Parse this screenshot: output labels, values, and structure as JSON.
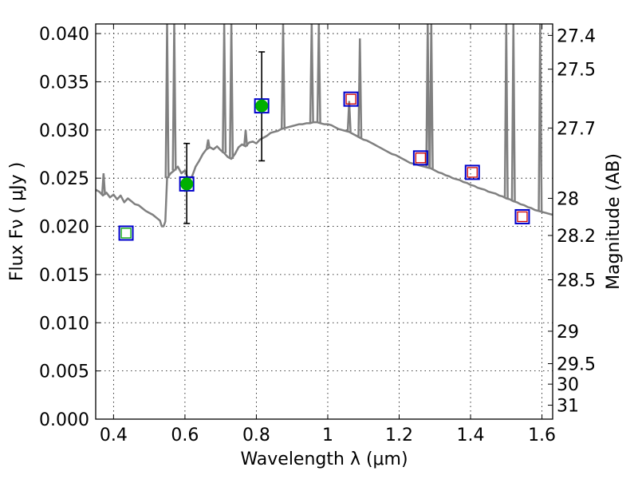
{
  "chart_data": {
    "type": "scatter",
    "title": "",
    "xlabel": "Wavelength  λ (μm)",
    "ylabel": "Flux  Fν  ( μJy )",
    "y2label": "Magnitude (AB)",
    "xlim": [
      0.35,
      1.63
    ],
    "ylim": [
      0.0,
      0.041
    ],
    "grid": true,
    "legend": "none",
    "xticks": [
      {
        "v": 0.4,
        "label": "0.4"
      },
      {
        "v": 0.6,
        "label": "0.6"
      },
      {
        "v": 0.8,
        "label": "0.8"
      },
      {
        "v": 1.0,
        "label": "1"
      },
      {
        "v": 1.2,
        "label": "1.2"
      },
      {
        "v": 1.4,
        "label": "1.4"
      },
      {
        "v": 1.6,
        "label": "1.6"
      }
    ],
    "yticks": [
      {
        "v": 0.0,
        "label": "0.000"
      },
      {
        "v": 0.005,
        "label": "0.005"
      },
      {
        "v": 0.01,
        "label": "0.010"
      },
      {
        "v": 0.015,
        "label": "0.015"
      },
      {
        "v": 0.02,
        "label": "0.020"
      },
      {
        "v": 0.025,
        "label": "0.025"
      },
      {
        "v": 0.03,
        "label": "0.030"
      },
      {
        "v": 0.035,
        "label": "0.035"
      },
      {
        "v": 0.04,
        "label": "0.040"
      }
    ],
    "magticks": [
      {
        "mag": 27.4,
        "label": "27.4"
      },
      {
        "mag": 27.5,
        "label": "27.5"
      },
      {
        "mag": 27.7,
        "label": "27.7"
      },
      {
        "mag": 28.0,
        "label": "28"
      },
      {
        "mag": 28.2,
        "label": "28.2"
      },
      {
        "mag": 28.5,
        "label": "28.5"
      },
      {
        "mag": 29.0,
        "label": "29"
      },
      {
        "mag": 29.5,
        "label": "29.5"
      },
      {
        "mag": 30.0,
        "label": "30"
      },
      {
        "mag": 31.0,
        "label": "31"
      }
    ],
    "series": [
      {
        "name": "model SED",
        "kind": "line",
        "color": "#808080",
        "points": [
          [
            0.35,
            0.0238
          ],
          [
            0.36,
            0.0236
          ],
          [
            0.37,
            0.0232
          ],
          [
            0.38,
            0.0235
          ],
          [
            0.39,
            0.023
          ],
          [
            0.4,
            0.0233
          ],
          [
            0.41,
            0.0228
          ],
          [
            0.42,
            0.0232
          ],
          [
            0.43,
            0.0225
          ],
          [
            0.44,
            0.0229
          ],
          [
            0.45,
            0.0226
          ],
          [
            0.46,
            0.0223
          ],
          [
            0.47,
            0.0222
          ],
          [
            0.48,
            0.0219
          ],
          [
            0.49,
            0.0216
          ],
          [
            0.5,
            0.0214
          ],
          [
            0.51,
            0.0212
          ],
          [
            0.52,
            0.0209
          ],
          [
            0.53,
            0.0206
          ],
          [
            0.535,
            0.02
          ],
          [
            0.54,
            0.02
          ],
          [
            0.545,
            0.0205
          ],
          [
            0.55,
            0.025
          ],
          [
            0.56,
            0.0255
          ],
          [
            0.57,
            0.0258
          ],
          [
            0.58,
            0.0262
          ],
          [
            0.59,
            0.0255
          ],
          [
            0.6,
            0.0258
          ],
          [
            0.61,
            0.0248
          ],
          [
            0.62,
            0.0252
          ],
          [
            0.63,
            0.0262
          ],
          [
            0.64,
            0.0268
          ],
          [
            0.65,
            0.0275
          ],
          [
            0.66,
            0.028
          ],
          [
            0.67,
            0.0282
          ],
          [
            0.68,
            0.028
          ],
          [
            0.69,
            0.0283
          ],
          [
            0.7,
            0.0279
          ],
          [
            0.71,
            0.0276
          ],
          [
            0.72,
            0.0272
          ],
          [
            0.73,
            0.027
          ],
          [
            0.74,
            0.0275
          ],
          [
            0.75,
            0.0282
          ],
          [
            0.76,
            0.0285
          ],
          [
            0.77,
            0.0283
          ],
          [
            0.78,
            0.0287
          ],
          [
            0.79,
            0.0288
          ],
          [
            0.8,
            0.0286
          ],
          [
            0.81,
            0.029
          ],
          [
            0.82,
            0.0292
          ],
          [
            0.83,
            0.0294
          ],
          [
            0.84,
            0.0297
          ],
          [
            0.85,
            0.0298
          ],
          [
            0.86,
            0.0299
          ],
          [
            0.87,
            0.0301
          ],
          [
            0.88,
            0.0302
          ],
          [
            0.89,
            0.0303
          ],
          [
            0.9,
            0.0304
          ],
          [
            0.91,
            0.0305
          ],
          [
            0.92,
            0.0306
          ],
          [
            0.93,
            0.0306
          ],
          [
            0.94,
            0.0307
          ],
          [
            0.95,
            0.0307
          ],
          [
            0.96,
            0.0308
          ],
          [
            0.97,
            0.0308
          ],
          [
            0.98,
            0.0307
          ],
          [
            0.99,
            0.0306
          ],
          [
            1.0,
            0.0306
          ],
          [
            1.01,
            0.0305
          ],
          [
            1.02,
            0.0303
          ],
          [
            1.03,
            0.0301
          ],
          [
            1.04,
            0.03
          ],
          [
            1.05,
            0.0299
          ],
          [
            1.06,
            0.0298
          ],
          [
            1.07,
            0.0296
          ],
          [
            1.08,
            0.0294
          ],
          [
            1.09,
            0.0292
          ],
          [
            1.1,
            0.029
          ],
          [
            1.11,
            0.0289
          ],
          [
            1.12,
            0.0287
          ],
          [
            1.13,
            0.0285
          ],
          [
            1.14,
            0.0283
          ],
          [
            1.15,
            0.0281
          ],
          [
            1.16,
            0.0279
          ],
          [
            1.17,
            0.0277
          ],
          [
            1.18,
            0.0275
          ],
          [
            1.19,
            0.0274
          ],
          [
            1.2,
            0.0272
          ],
          [
            1.21,
            0.027
          ],
          [
            1.22,
            0.0268
          ],
          [
            1.23,
            0.0266
          ],
          [
            1.24,
            0.0265
          ],
          [
            1.25,
            0.0264
          ],
          [
            1.26,
            0.0263
          ],
          [
            1.27,
            0.0262
          ],
          [
            1.28,
            0.0261
          ],
          [
            1.29,
            0.026
          ],
          [
            1.3,
            0.0258
          ],
          [
            1.31,
            0.0256
          ],
          [
            1.32,
            0.0255
          ],
          [
            1.33,
            0.0253
          ],
          [
            1.34,
            0.0252
          ],
          [
            1.35,
            0.025
          ],
          [
            1.36,
            0.0249
          ],
          [
            1.37,
            0.0248
          ],
          [
            1.38,
            0.0246
          ],
          [
            1.39,
            0.0245
          ],
          [
            1.4,
            0.0243
          ],
          [
            1.41,
            0.0242
          ],
          [
            1.42,
            0.024
          ],
          [
            1.43,
            0.0239
          ],
          [
            1.44,
            0.0238
          ],
          [
            1.45,
            0.0236
          ],
          [
            1.46,
            0.0235
          ],
          [
            1.47,
            0.0234
          ],
          [
            1.48,
            0.0232
          ],
          [
            1.49,
            0.0231
          ],
          [
            1.5,
            0.0229
          ],
          [
            1.51,
            0.0228
          ],
          [
            1.52,
            0.0226
          ],
          [
            1.53,
            0.0225
          ],
          [
            1.54,
            0.0223
          ],
          [
            1.55,
            0.0222
          ],
          [
            1.56,
            0.022
          ],
          [
            1.57,
            0.0219
          ],
          [
            1.58,
            0.0217
          ],
          [
            1.59,
            0.0216
          ],
          [
            1.6,
            0.0215
          ],
          [
            1.61,
            0.0214
          ],
          [
            1.62,
            0.0213
          ],
          [
            1.63,
            0.0212
          ]
        ]
      },
      {
        "name": "emission lines",
        "kind": "spikes",
        "color": "#808080",
        "lines": [
          {
            "x": 0.372,
            "y": 0.0255
          },
          {
            "x": 0.55,
            "y": 0.041
          },
          {
            "x": 0.57,
            "y": 0.041
          },
          {
            "x": 0.665,
            "y": 0.029
          },
          {
            "x": 0.71,
            "y": 0.041
          },
          {
            "x": 0.73,
            "y": 0.041
          },
          {
            "x": 0.77,
            "y": 0.03
          },
          {
            "x": 0.875,
            "y": 0.041
          },
          {
            "x": 0.955,
            "y": 0.041
          },
          {
            "x": 0.975,
            "y": 0.041
          },
          {
            "x": 1.06,
            "y": 0.033
          },
          {
            "x": 1.09,
            "y": 0.0395
          },
          {
            "x": 1.28,
            "y": 0.041
          },
          {
            "x": 1.29,
            "y": 0.041
          },
          {
            "x": 1.5,
            "y": 0.041
          },
          {
            "x": 1.52,
            "y": 0.041
          },
          {
            "x": 1.595,
            "y": 0.041
          }
        ]
      },
      {
        "name": "observed photometry",
        "kind": "points",
        "color": "#00b000",
        "points": [
          {
            "x": 0.605,
            "y": 0.0244,
            "err": [
              0.0203,
              0.0286
            ]
          },
          {
            "x": 0.815,
            "y": 0.0325,
            "err": [
              0.0268,
              0.0381
            ]
          }
        ]
      },
      {
        "name": "model photometry (blue)",
        "kind": "squares",
        "color": "#0000cc",
        "points": [
          {
            "x": 0.435,
            "y": 0.0193
          },
          {
            "x": 0.605,
            "y": 0.0244
          },
          {
            "x": 0.815,
            "y": 0.0325
          },
          {
            "x": 1.065,
            "y": 0.0332
          },
          {
            "x": 1.26,
            "y": 0.0271
          },
          {
            "x": 1.405,
            "y": 0.0256
          },
          {
            "x": 1.545,
            "y": 0.021
          }
        ]
      },
      {
        "name": "model photometry (red)",
        "kind": "squares-inner",
        "color": "#cc0000",
        "points": [
          {
            "x": 1.065,
            "y": 0.0332
          },
          {
            "x": 1.26,
            "y": 0.0271
          },
          {
            "x": 1.405,
            "y": 0.0256
          },
          {
            "x": 1.545,
            "y": 0.021
          }
        ]
      },
      {
        "name": "model photometry (green)",
        "kind": "squares-inner",
        "color": "#00aa00",
        "points": [
          {
            "x": 0.435,
            "y": 0.0193
          }
        ]
      }
    ]
  }
}
